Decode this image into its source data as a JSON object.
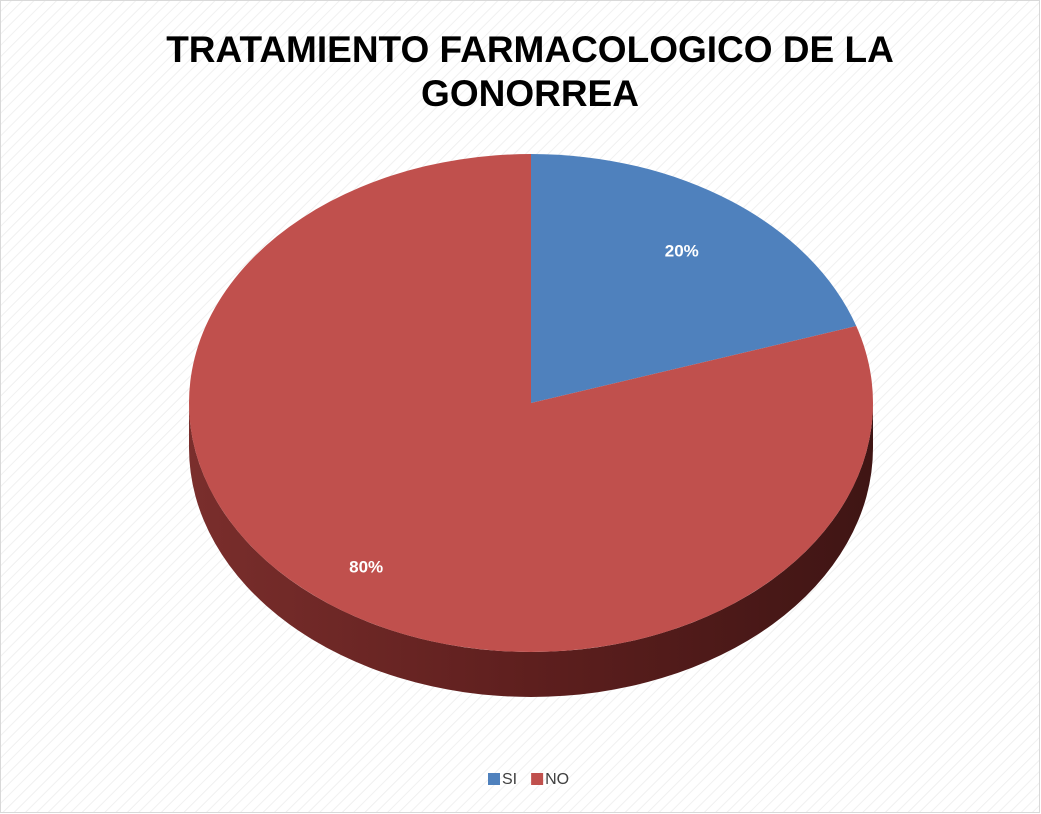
{
  "chart_data": {
    "type": "pie",
    "title": "TRATAMIENTO FARMACOLOGICO DE LA GONORREA",
    "categories": [
      "SI",
      "NO"
    ],
    "values": [
      20,
      80
    ],
    "value_labels": [
      "20%",
      "80%"
    ],
    "colors": [
      "#4f81bd",
      "#c0504d"
    ],
    "legend": "bottom"
  }
}
